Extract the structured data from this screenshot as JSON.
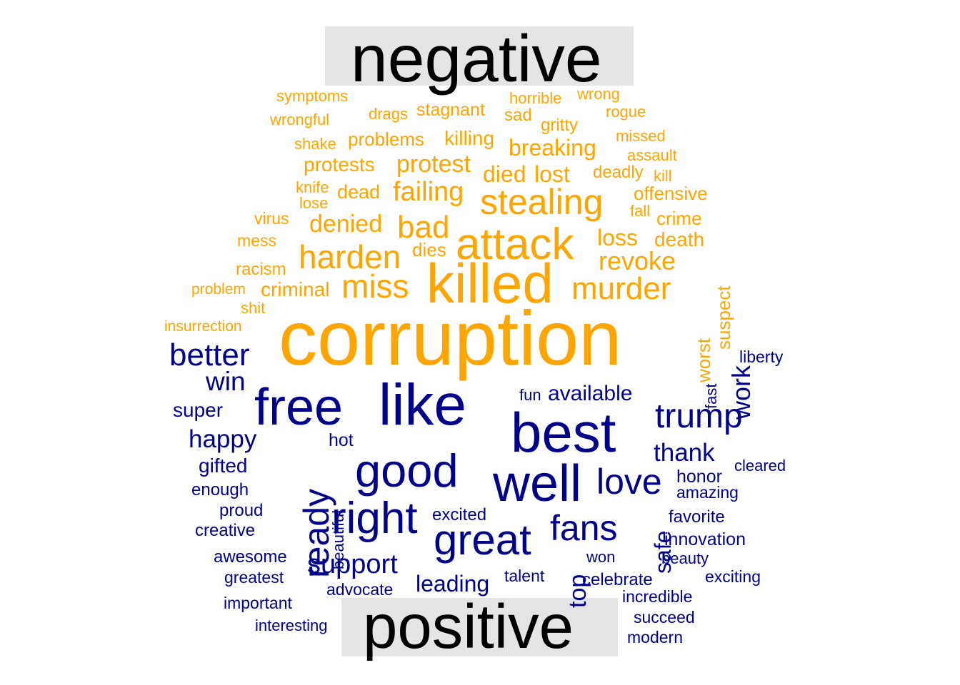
{
  "groups": {
    "negative": {
      "label": "negative",
      "color": "#FFA500"
    },
    "positive": {
      "label": "positive",
      "color": "#00008B"
    }
  },
  "label_box_color": "#e5e5e5",
  "words": {
    "negative": [
      "corruption",
      "killed",
      "attack",
      "stealing",
      "harden",
      "miss",
      "murder",
      "bad",
      "failing",
      "denied",
      "revoke",
      "protest",
      "loss",
      "breaking",
      "protests",
      "problems",
      "killing",
      "died",
      "lost",
      "dead",
      "criminal",
      "death",
      "stagnant",
      "symptoms",
      "wrongful",
      "drags",
      "sad",
      "horrible",
      "wrong",
      "rogue",
      "gritty",
      "missed",
      "shake",
      "assault",
      "deadly",
      "kill",
      "knife",
      "lose",
      "offensive",
      "fall",
      "crime",
      "virus",
      "mess",
      "dies",
      "racism",
      "problem",
      "shit",
      "insurrection",
      "suspect",
      "worst"
    ],
    "positive": [
      "like",
      "best",
      "free",
      "good",
      "well",
      "great",
      "right",
      "ready",
      "trump",
      "better",
      "fans",
      "love",
      "support",
      "win",
      "happy",
      "work",
      "thank",
      "safe",
      "top",
      "leading",
      "available",
      "super",
      "gifted",
      "honor",
      "amazing",
      "hot",
      "enough",
      "proud",
      "creative",
      "excited",
      "favorite",
      "innovation",
      "awesome",
      "greatest",
      "advocate",
      "celebrate",
      "talent",
      "won",
      "beauty",
      "exciting",
      "important",
      "incredible",
      "interesting",
      "succeed",
      "modern",
      "liberty",
      "cleared",
      "fast",
      "fun",
      "beautiful"
    ]
  }
}
